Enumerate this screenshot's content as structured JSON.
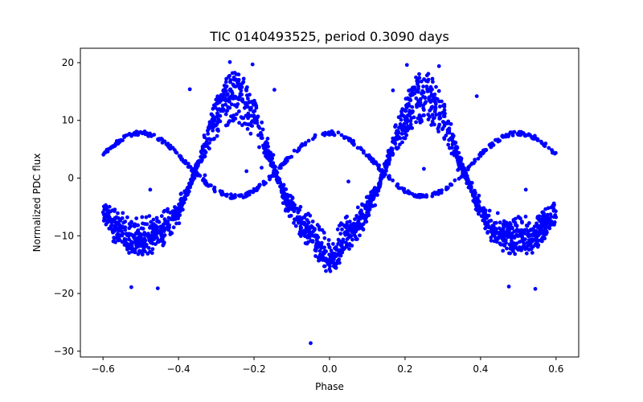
{
  "chart_data": {
    "type": "scatter",
    "title": "TIC 0140493525, period 0.3090 days",
    "xlabel": "Phase",
    "ylabel": "Normalized PDC flux",
    "xlim": [
      -0.66,
      0.66
    ],
    "ylim": [
      -31,
      22.5
    ],
    "xticks": [
      -0.6,
      -0.4,
      -0.2,
      0.0,
      0.2,
      0.4,
      0.6
    ],
    "xtick_labels": [
      "−0.6",
      "−0.4",
      "−0.2",
      "0.0",
      "0.2",
      "0.4",
      "0.6"
    ],
    "yticks": [
      -30,
      -20,
      -10,
      0,
      10,
      20
    ],
    "ytick_labels": [
      "−30",
      "−20",
      "−10",
      "0",
      "10",
      "20"
    ],
    "grid": false,
    "marker_color": "#0000ff",
    "outliers": [
      {
        "x": -0.264,
        "y": 20.1
      },
      {
        "x": -0.204,
        "y": 19.7
      },
      {
        "x": 0.205,
        "y": 19.6
      },
      {
        "x": 0.29,
        "y": 19.4
      },
      {
        "x": -0.37,
        "y": 15.4
      },
      {
        "x": -0.146,
        "y": 15.3
      },
      {
        "x": 0.168,
        "y": 15.2
      },
      {
        "x": 0.226,
        "y": 15.4
      },
      {
        "x": 0.39,
        "y": 14.2
      },
      {
        "x": -0.33,
        "y": 0.5
      },
      {
        "x": -0.22,
        "y": 1.2
      },
      {
        "x": -0.18,
        "y": 1.8
      },
      {
        "x": 0.25,
        "y": 1.6
      },
      {
        "x": 0.34,
        "y": 1.4
      },
      {
        "x": -0.475,
        "y": -2.0
      },
      {
        "x": 0.52,
        "y": -2.0
      },
      {
        "x": -0.39,
        "y": -4.6
      },
      {
        "x": 0.05,
        "y": -0.6
      },
      {
        "x": -0.05,
        "y": -28.6
      },
      {
        "x": -0.525,
        "y": -18.9
      },
      {
        "x": -0.455,
        "y": -19.1
      },
      {
        "x": 0.475,
        "y": -18.8
      },
      {
        "x": 0.545,
        "y": -19.2
      }
    ]
  }
}
